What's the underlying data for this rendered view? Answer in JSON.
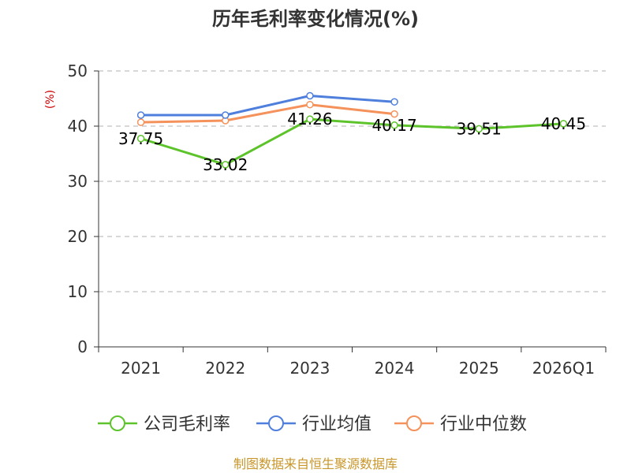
{
  "chart_data": {
    "type": "line",
    "title": "历年毛利率变化情况(%)",
    "ylabel": "(%)",
    "xlabel": "",
    "categories": [
      "2021",
      "2022",
      "2023",
      "2024",
      "2025",
      "2026Q1"
    ],
    "ylim": [
      0,
      50
    ],
    "yticks": [
      0,
      10,
      20,
      30,
      40,
      50
    ],
    "grid": true,
    "legend_position": "bottom",
    "series": [
      {
        "name": "公司毛利率",
        "color": "#5cc32a",
        "values": [
          37.75,
          33.02,
          41.26,
          40.17,
          39.51,
          40.45
        ],
        "labels": [
          "37.75",
          "33.02",
          "41.26",
          "40.17",
          "39.51",
          "40.45"
        ]
      },
      {
        "name": "行业均值",
        "color": "#4f7fdc",
        "values": [
          42.0,
          42.0,
          45.5,
          44.4,
          null,
          null
        ]
      },
      {
        "name": "行业中位数",
        "color": "#f5915a",
        "values": [
          40.7,
          41.0,
          43.9,
          42.2,
          null,
          null
        ]
      }
    ]
  },
  "source_text": "制图数据来自恒生聚源数据库"
}
